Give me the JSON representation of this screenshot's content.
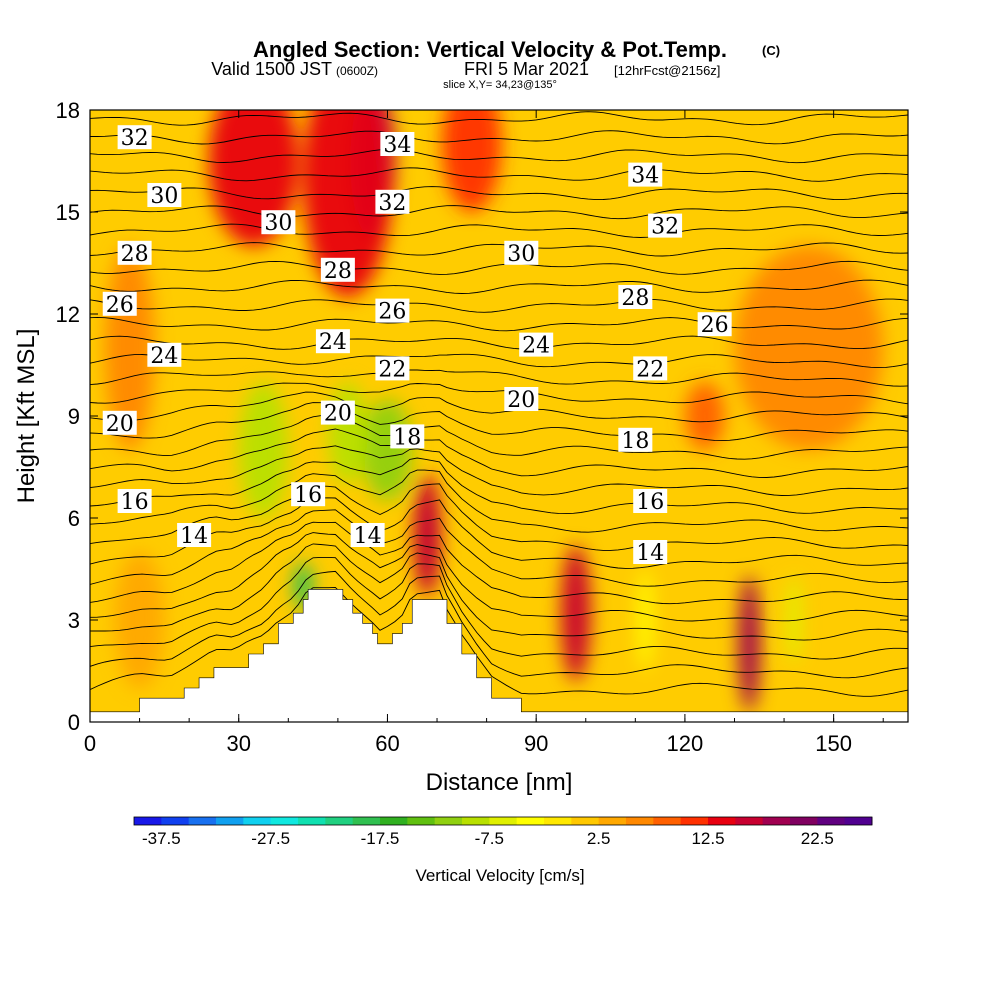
{
  "figure": {
    "title": "Angled Section: Vertical Velocity & Pot.Temp.",
    "title_mark": "(C)",
    "valid_label": "Valid 1500 JST",
    "valid_utc": "(0600Z)",
    "valid_date": "FRI 5 Mar 2021",
    "forecast_note": "[12hrFcst@2156z]",
    "slice_info": "slice X,Y= 34,23@135°"
  },
  "chart_data": {
    "type": "heatmap",
    "xlabel": "Distance [nm]",
    "ylabel": "Height [Kft MSL]",
    "xlim": [
      0,
      165
    ],
    "ylim": [
      0,
      18
    ],
    "x_ticks": [
      0,
      30,
      60,
      90,
      120,
      150
    ],
    "y_ticks": [
      0,
      3,
      6,
      9,
      12,
      15,
      18
    ],
    "colorbar": {
      "label": "Vertical Velocity [cm/s]",
      "tick_labels": [
        "-37.5",
        "-27.5",
        "-17.5",
        "-7.5",
        "2.5",
        "12.5",
        "22.5"
      ],
      "tick_values": [
        -37.5,
        -27.5,
        -17.5,
        -7.5,
        2.5,
        12.5,
        22.5
      ],
      "min": -40,
      "max": 27.5,
      "step": 2.5,
      "colors": [
        "#1818e8",
        "#1040f0",
        "#1870f0",
        "#10a0f0",
        "#10d0f0",
        "#10e8e0",
        "#10e0b0",
        "#20d080",
        "#30c050",
        "#30b020",
        "#60c010",
        "#90d010",
        "#b8e000",
        "#e0f000",
        "#ffff00",
        "#ffe800",
        "#ffc800",
        "#ffa800",
        "#ff8800",
        "#ff6000",
        "#ff3000",
        "#e80010",
        "#c80030",
        "#a00050",
        "#800060",
        "#600080",
        "#500090"
      ]
    },
    "terrain": [
      {
        "x": 0,
        "h": 0.3
      },
      {
        "x": 10,
        "h": 0.7
      },
      {
        "x": 16,
        "h": 0.7
      },
      {
        "x": 19,
        "h": 1.0
      },
      {
        "x": 22,
        "h": 1.3
      },
      {
        "x": 25,
        "h": 1.6
      },
      {
        "x": 29,
        "h": 1.6
      },
      {
        "x": 32,
        "h": 2.0
      },
      {
        "x": 35,
        "h": 2.3
      },
      {
        "x": 38,
        "h": 2.9
      },
      {
        "x": 41,
        "h": 3.2
      },
      {
        "x": 43,
        "h": 3.6
      },
      {
        "x": 44,
        "h": 3.9
      },
      {
        "x": 50,
        "h": 3.9
      },
      {
        "x": 51,
        "h": 3.6
      },
      {
        "x": 53,
        "h": 3.2
      },
      {
        "x": 55,
        "h": 2.9
      },
      {
        "x": 57,
        "h": 2.6
      },
      {
        "x": 58,
        "h": 2.3
      },
      {
        "x": 61,
        "h": 2.6
      },
      {
        "x": 63,
        "h": 2.9
      },
      {
        "x": 65,
        "h": 3.6
      },
      {
        "x": 71,
        "h": 3.6
      },
      {
        "x": 72,
        "h": 2.9
      },
      {
        "x": 75,
        "h": 2.0
      },
      {
        "x": 78,
        "h": 1.3
      },
      {
        "x": 81,
        "h": 0.7
      },
      {
        "x": 87,
        "h": 0.3
      },
      {
        "x": 165,
        "h": 0.3
      }
    ],
    "vv_features": [
      {
        "x": 57,
        "y": 16.5,
        "rx": 4.5,
        "ry": 2.3,
        "v": 22
      },
      {
        "x": 52,
        "y": 16,
        "rx": 9,
        "ry": 3.5,
        "v": 14
      },
      {
        "x": 33,
        "y": 16.5,
        "rx": 9,
        "ry": 2.5,
        "v": 13
      },
      {
        "x": 77,
        "y": 17,
        "rx": 6,
        "ry": 2,
        "v": 12
      },
      {
        "x": 68,
        "y": 5.2,
        "rx": 1.5,
        "ry": 1.3,
        "v": 25
      },
      {
        "x": 68,
        "y": 5.5,
        "rx": 2.8,
        "ry": 1.8,
        "v": 15
      },
      {
        "x": 98,
        "y": 3.2,
        "rx": 3,
        "ry": 2,
        "v": 17
      },
      {
        "x": 133,
        "y": 2.3,
        "rx": 2.2,
        "ry": 2,
        "v": 18
      },
      {
        "x": 60,
        "y": 8,
        "rx": 5,
        "ry": 1.5,
        "v": -11
      },
      {
        "x": 52,
        "y": 8.5,
        "rx": 4,
        "ry": 1.5,
        "v": -9
      },
      {
        "x": 35,
        "y": 8,
        "rx": 5,
        "ry": 2,
        "v": -8
      },
      {
        "x": 43,
        "y": 4,
        "rx": 2,
        "ry": 0.7,
        "v": -20
      },
      {
        "x": 124,
        "y": 9,
        "rx": 4,
        "ry": 1,
        "v": 8
      },
      {
        "x": 8,
        "y": 11,
        "rx": 5,
        "ry": 3,
        "v": 6
      },
      {
        "x": 145,
        "y": 11,
        "rx": 15,
        "ry": 3,
        "v": 5
      },
      {
        "x": 10,
        "y": 3,
        "rx": 5,
        "ry": 2,
        "v": 4
      },
      {
        "x": 112,
        "y": 3,
        "rx": 1.5,
        "ry": 1.5,
        "v": -4
      },
      {
        "x": 142,
        "y": 3,
        "rx": 1.5,
        "ry": 1.3,
        "v": -6
      }
    ],
    "contour_labels": [
      {
        "text": "32",
        "x": 9,
        "y": 17.2
      },
      {
        "text": "30",
        "x": 15,
        "y": 15.5
      },
      {
        "text": "28",
        "x": 9,
        "y": 13.8
      },
      {
        "text": "26",
        "x": 6,
        "y": 12.3
      },
      {
        "text": "24",
        "x": 15,
        "y": 10.8
      },
      {
        "text": "20",
        "x": 6,
        "y": 8.8
      },
      {
        "text": "16",
        "x": 9,
        "y": 6.5
      },
      {
        "text": "14",
        "x": 21,
        "y": 5.5
      },
      {
        "text": "30",
        "x": 38,
        "y": 14.7
      },
      {
        "text": "34",
        "x": 62,
        "y": 17
      },
      {
        "text": "32",
        "x": 61,
        "y": 15.3
      },
      {
        "text": "28",
        "x": 50,
        "y": 13.3
      },
      {
        "text": "26",
        "x": 61,
        "y": 12.1
      },
      {
        "text": "24",
        "x": 49,
        "y": 11.2
      },
      {
        "text": "22",
        "x": 61,
        "y": 10.4
      },
      {
        "text": "20",
        "x": 50,
        "y": 9.1
      },
      {
        "text": "18",
        "x": 64,
        "y": 8.4
      },
      {
        "text": "16",
        "x": 44,
        "y": 6.7
      },
      {
        "text": "14",
        "x": 56,
        "y": 5.5
      },
      {
        "text": "34",
        "x": 112,
        "y": 16.1
      },
      {
        "text": "32",
        "x": 116,
        "y": 14.6
      },
      {
        "text": "30",
        "x": 87,
        "y": 13.8
      },
      {
        "text": "28",
        "x": 110,
        "y": 12.5
      },
      {
        "text": "26",
        "x": 126,
        "y": 11.7
      },
      {
        "text": "24",
        "x": 90,
        "y": 11.1
      },
      {
        "text": "22",
        "x": 113,
        "y": 10.4
      },
      {
        "text": "20",
        "x": 87,
        "y": 9.5
      },
      {
        "text": "18",
        "x": 110,
        "y": 8.3
      },
      {
        "text": "16",
        "x": 113,
        "y": 6.5
      },
      {
        "text": "14",
        "x": 113,
        "y": 5
      }
    ]
  }
}
